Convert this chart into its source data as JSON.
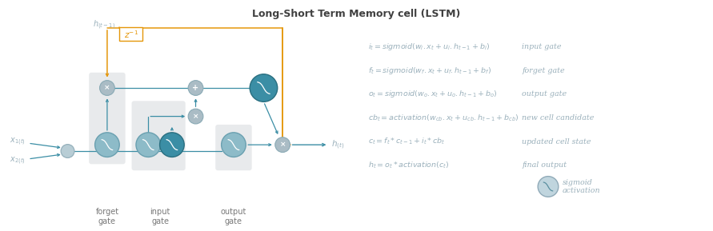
{
  "title": "Long-Short Term Memory cell (LSTM)",
  "title_fontsize": 9,
  "title_color": "#404040",
  "bg_color": "#ffffff",
  "teal": "#3b8ea5",
  "teal_dark": "#2a6f80",
  "orange": "#e5970a",
  "gray_node": "#9ab0bb",
  "gray_text": "#888888",
  "eq_color": "#9ab0bb",
  "equations": [
    "$i_t = sigmoid(w_i.x_t + u_i.h_{t-1} + b_i)$",
    "$f_t = sigmoid(w_f.x_t + u_f.h_{t-1} + b_f)$",
    "$o_t = sigmoid(w_o.x_t + u_o.h_{t-1} + b_o)$",
    "$cb_t = activation(w_{cb}.x_t + u_{cb}.h_{t-1} + b_{cb})$",
    "$c_t = f_t * c_{t-1} + i_t * cb_t$",
    "$h_t = o_t * activation(c_t)$"
  ],
  "labels": [
    "input gate",
    "forget gate",
    "output gate",
    "new cell candidate",
    "updated cell state",
    "final output"
  ]
}
